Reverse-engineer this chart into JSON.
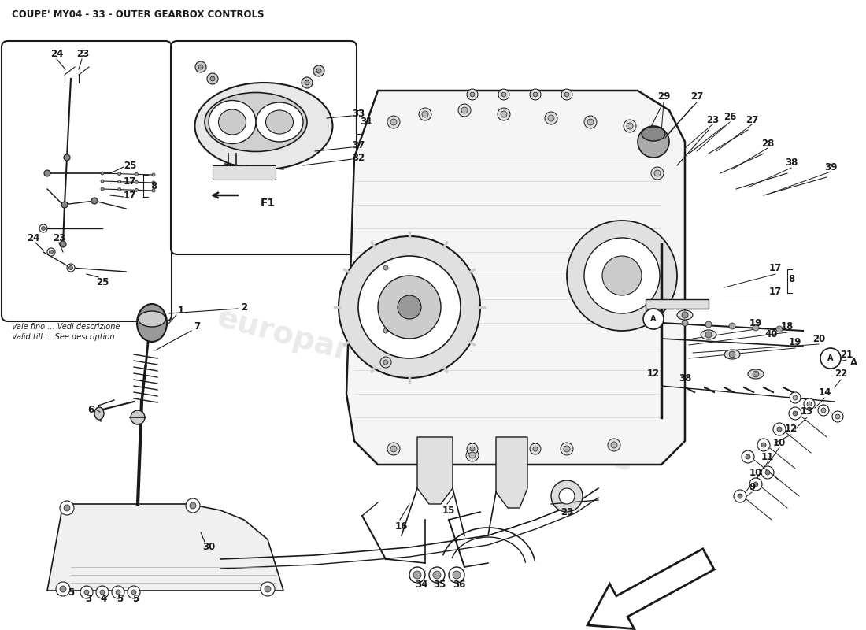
{
  "title": "COUPE' MY04 - 33 - OUTER GEARBOX CONTROLS",
  "bg_color": "#ffffff",
  "lc": "#1a1a1a",
  "gray1": "#bbbbbb",
  "gray2": "#d8d8d8",
  "gray3": "#eeeeee",
  "watermark": "europarts",
  "note_lines": [
    "Vale fino ... Vedi descrizione",
    "Valid till ... See description"
  ]
}
